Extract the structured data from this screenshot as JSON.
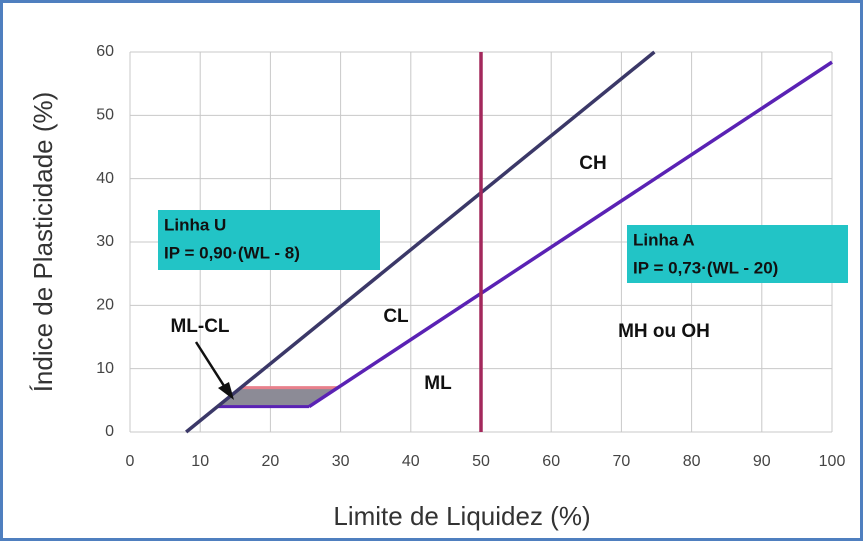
{
  "chart_data": {
    "type": "line",
    "xlabel": "Limite de Liquidez (%)",
    "ylabel": "Índice de Plasticidade (%)",
    "xlim": [
      0,
      100
    ],
    "xticks": [
      0,
      10,
      20,
      30,
      40,
      50,
      60,
      70,
      80,
      90,
      100
    ],
    "ylim": [
      0,
      60
    ],
    "yticks": [
      0,
      10,
      20,
      30,
      40,
      50,
      60
    ],
    "grid": true,
    "series": [
      {
        "name": "Linha U",
        "label": "IP = 0,90·(WL -  8)",
        "color": "#3b3868",
        "x": [
          8,
          74.7
        ],
        "values": [
          0,
          60
        ]
      },
      {
        "name": "Linha A",
        "label": "IP = 0,73·(WL -  20)",
        "color": "#5a22b4",
        "x": [
          25.5,
          100
        ],
        "values": [
          4,
          58.4
        ]
      },
      {
        "color": "#a3285c",
        "x": [
          50,
          50
        ],
        "values": [
          0,
          60
        ]
      }
    ],
    "zone": {
      "name": "ML-CL",
      "color": "#8c8b96",
      "edge_color": "#e8808c",
      "x": [
        12.4,
        25.5,
        29.6,
        15.8
      ],
      "values": [
        4,
        4,
        7,
        7
      ]
    },
    "regions": [
      "CH",
      "CL",
      "ML",
      "MH ou OH"
    ]
  }
}
